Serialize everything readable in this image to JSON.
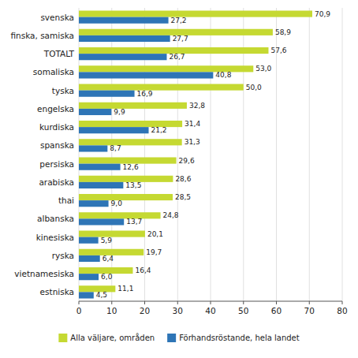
{
  "chart_data": {
    "type": "bar",
    "orientation": "horizontal",
    "categories": [
      "svenska",
      "finska, samiska",
      "TOTALT",
      "somaliska",
      "tyska",
      "engelska",
      "kurdiska",
      "spanska",
      "persiska",
      "arabiska",
      "thai",
      "albanska",
      "kinesiska",
      "ryska",
      "vietnamesiska",
      "estniska"
    ],
    "series": [
      {
        "name": "Alla väljare, områden",
        "color": "#c5d932",
        "values": [
          70.9,
          58.9,
          57.6,
          53.0,
          50.0,
          32.8,
          31.4,
          31.3,
          29.6,
          28.6,
          28.5,
          24.8,
          20.1,
          19.7,
          16.4,
          11.1
        ],
        "value_labels": [
          "70,9",
          "58,9",
          "57,6",
          "53,0",
          "50,0",
          "32,8",
          "31,4",
          "31,3",
          "29,6",
          "28,6",
          "28,5",
          "24,8",
          "20,1",
          "19,7",
          "16,4",
          "11,1"
        ]
      },
      {
        "name": "Förhandsröstande, hela landet",
        "color": "#2e75b6",
        "values": [
          27.2,
          27.7,
          26.7,
          40.8,
          16.9,
          9.9,
          21.2,
          8.7,
          12.6,
          13.5,
          9.0,
          13.7,
          5.9,
          6.4,
          6.0,
          4.5
        ],
        "value_labels": [
          "27,2",
          "27,7",
          "26,7",
          "40,8",
          "16,9",
          "9,9",
          "21,2",
          "8,7",
          "12,6",
          "13,5",
          "9,0",
          "13,7",
          "5,9",
          "6,4",
          "6,0",
          "4,5"
        ]
      }
    ],
    "xlim": [
      0,
      80
    ],
    "xticks": [
      0,
      10,
      20,
      30,
      40,
      50,
      60,
      70,
      80
    ],
    "grid": true,
    "legend": "bottom",
    "data_labels": true
  }
}
